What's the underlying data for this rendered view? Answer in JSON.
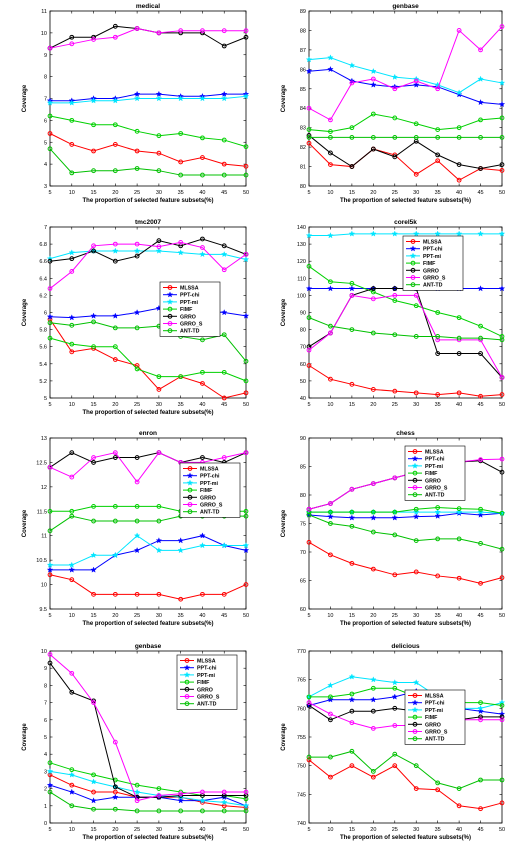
{
  "figure": {
    "series_styles": [
      {
        "name": "MLSSA",
        "color": "#ff0000",
        "marker": "circle"
      },
      {
        "name": "PPT-chi",
        "color": "#0000ff",
        "marker": "star"
      },
      {
        "name": "PPT-mi",
        "color": "#00e5ff",
        "marker": "star"
      },
      {
        "name": "FIMF",
        "color": "#00d000",
        "marker": "circle"
      },
      {
        "name": "GRRO",
        "color": "#000000",
        "marker": "circle"
      },
      {
        "name": "GRRO_S",
        "color": "#ff00ff",
        "marker": "circle"
      },
      {
        "name": "ANT-TD",
        "color": "#00c000",
        "marker": "circle"
      }
    ]
  },
  "chart_data": [
    {
      "type": "line",
      "title": "medical",
      "xlabel": "The proportion of selected feature subsets(%)",
      "ylabel": "Coverage",
      "x": [
        5,
        10,
        15,
        20,
        25,
        30,
        35,
        40,
        45,
        50
      ],
      "ylim": [
        3,
        11
      ],
      "yticks": [
        3,
        4,
        5,
        6,
        7,
        8,
        9,
        10,
        11
      ],
      "legend": "none",
      "grid": false,
      "series": [
        {
          "name": "MLSSA",
          "values": [
            5.4,
            4.9,
            4.6,
            4.9,
            4.6,
            4.5,
            4.1,
            4.3,
            4.0,
            3.9
          ]
        },
        {
          "name": "PPT-chi",
          "values": [
            6.9,
            6.9,
            7.0,
            7.0,
            7.2,
            7.2,
            7.1,
            7.1,
            7.2,
            7.2
          ]
        },
        {
          "name": "PPT-mi",
          "values": [
            6.8,
            6.8,
            6.9,
            6.9,
            7.0,
            7.0,
            7.0,
            7.0,
            7.0,
            7.1
          ]
        },
        {
          "name": "FIMF",
          "values": [
            6.2,
            6.0,
            5.8,
            5.8,
            5.5,
            5.3,
            5.4,
            5.2,
            5.1,
            4.8
          ]
        },
        {
          "name": "GRRO",
          "values": [
            9.3,
            9.8,
            9.8,
            10.3,
            10.2,
            10.0,
            10.0,
            10.0,
            9.4,
            9.8
          ]
        },
        {
          "name": "GRRO_S",
          "values": [
            9.3,
            9.5,
            9.7,
            9.8,
            10.2,
            10.0,
            10.1,
            10.1,
            10.1,
            10.1
          ]
        },
        {
          "name": "ANT-TD",
          "values": [
            4.7,
            3.6,
            3.7,
            3.7,
            3.8,
            3.7,
            3.5,
            3.5,
            3.5,
            3.5
          ]
        }
      ]
    },
    {
      "type": "line",
      "title": "genbase",
      "xlabel": "The proportion of selected feature subsets(%)",
      "ylabel": "Coverage",
      "x": [
        5,
        10,
        15,
        20,
        25,
        30,
        35,
        40,
        45,
        50
      ],
      "ylim": [
        80,
        89
      ],
      "yticks": [
        80,
        81,
        82,
        83,
        84,
        85,
        86,
        87,
        88,
        89
      ],
      "legend": "none",
      "grid": false,
      "series": [
        {
          "name": "MLSSA",
          "values": [
            82.2,
            81.1,
            81.0,
            81.9,
            81.6,
            80.6,
            81.3,
            80.3,
            80.9,
            80.8
          ]
        },
        {
          "name": "PPT-chi",
          "values": [
            85.9,
            86.0,
            85.4,
            85.2,
            85.1,
            85.2,
            85.1,
            84.7,
            84.3,
            84.2
          ]
        },
        {
          "name": "PPT-mi",
          "values": [
            86.5,
            86.6,
            86.2,
            85.9,
            85.6,
            85.5,
            85.2,
            84.8,
            85.5,
            85.3
          ]
        },
        {
          "name": "FIMF",
          "values": [
            82.9,
            82.8,
            83.0,
            83.7,
            83.5,
            83.2,
            82.9,
            83.0,
            83.4,
            83.5
          ]
        },
        {
          "name": "GRRO",
          "values": [
            82.6,
            81.7,
            81.0,
            81.9,
            81.5,
            82.3,
            81.6,
            81.1,
            80.9,
            81.1
          ]
        },
        {
          "name": "GRRO_S",
          "values": [
            84.0,
            83.4,
            85.3,
            85.5,
            85.0,
            85.4,
            85.0,
            88.0,
            87.0,
            88.2
          ]
        },
        {
          "name": "ANT-TD",
          "values": [
            82.5,
            82.5,
            82.5,
            82.5,
            82.5,
            82.5,
            82.5,
            82.5,
            82.5,
            82.5
          ]
        }
      ]
    },
    {
      "type": "line",
      "title": "tmc2007",
      "xlabel": "The proportion of selected feature subsets(%)",
      "ylabel": "Coverage",
      "x": [
        5,
        10,
        15,
        20,
        25,
        30,
        35,
        40,
        45,
        50
      ],
      "ylim": [
        5,
        7
      ],
      "yticks": [
        5,
        5.2,
        5.4,
        5.6,
        5.8,
        6,
        6.2,
        6.4,
        6.6,
        6.8,
        7
      ],
      "legend": "right",
      "grid": false,
      "series": [
        {
          "name": "MLSSA",
          "values": [
            5.92,
            5.54,
            5.58,
            5.45,
            5.38,
            5.1,
            5.25,
            5.17,
            5.0,
            5.06
          ]
        },
        {
          "name": "PPT-chi",
          "values": [
            5.95,
            5.94,
            5.96,
            5.96,
            6.0,
            6.05,
            6.0,
            6.02,
            6.0,
            5.96
          ]
        },
        {
          "name": "PPT-mi",
          "values": [
            6.63,
            6.7,
            6.72,
            6.72,
            6.72,
            6.72,
            6.7,
            6.68,
            6.68,
            6.62
          ]
        },
        {
          "name": "FIMF",
          "values": [
            5.7,
            5.63,
            5.6,
            5.6,
            5.34,
            5.25,
            5.25,
            5.3,
            5.3,
            5.2
          ]
        },
        {
          "name": "GRRO",
          "values": [
            6.6,
            6.63,
            6.72,
            6.6,
            6.66,
            6.84,
            6.78,
            6.86,
            6.78,
            6.68
          ]
        },
        {
          "name": "GRRO_S",
          "values": [
            6.28,
            6.48,
            6.78,
            6.8,
            6.8,
            6.77,
            6.82,
            6.76,
            6.5,
            6.68
          ]
        },
        {
          "name": "ANT-TD",
          "values": [
            5.88,
            5.85,
            5.89,
            5.82,
            5.82,
            5.84,
            5.72,
            5.68,
            5.74,
            5.43
          ]
        }
      ]
    },
    {
      "type": "line",
      "title": "corel5k",
      "xlabel": "",
      "ylabel": "Coverage",
      "x": [
        5,
        10,
        15,
        20,
        25,
        30,
        35,
        40,
        45,
        50
      ],
      "ylim": [
        40,
        140
      ],
      "yticks": [
        40,
        50,
        60,
        70,
        80,
        90,
        100,
        110,
        120,
        130,
        140
      ],
      "legend": "right",
      "grid": false,
      "series": [
        {
          "name": "MLSSA",
          "values": [
            59,
            51,
            48,
            45,
            44,
            43,
            42,
            43,
            41,
            42
          ]
        },
        {
          "name": "PPT-chi",
          "values": [
            104,
            104,
            104,
            104,
            104,
            104,
            104,
            104,
            104,
            104
          ]
        },
        {
          "name": "PPT-mi",
          "values": [
            135,
            135,
            136,
            136,
            136,
            136,
            136,
            136,
            136,
            136
          ]
        },
        {
          "name": "FIMF",
          "values": [
            117,
            108,
            107,
            102,
            97,
            94,
            90,
            87,
            82,
            76
          ]
        },
        {
          "name": "GRRO",
          "values": [
            70,
            78,
            100,
            104,
            104,
            104,
            66,
            66,
            66,
            52
          ]
        },
        {
          "name": "GRRO_S",
          "values": [
            68,
            78,
            100,
            98,
            100,
            100,
            74,
            74,
            74,
            52
          ]
        },
        {
          "name": "ANT-TD",
          "values": [
            87,
            82,
            80,
            78,
            77,
            76,
            76,
            75,
            75,
            74
          ]
        }
      ]
    },
    {
      "type": "line",
      "title": "enron",
      "xlabel": "The proportion of selected feature subsets(%)",
      "ylabel": "Coverage",
      "x": [
        5,
        10,
        15,
        20,
        25,
        30,
        35,
        40,
        45,
        50
      ],
      "ylim": [
        9.5,
        13
      ],
      "yticks": [
        9.5,
        10,
        10.5,
        11,
        11.5,
        12,
        12.5,
        13
      ],
      "legend": "right",
      "grid": false,
      "series": [
        {
          "name": "MLSSA",
          "values": [
            10.2,
            10.1,
            9.8,
            9.8,
            9.8,
            9.8,
            9.7,
            9.8,
            9.8,
            10.0
          ]
        },
        {
          "name": "PPT-chi",
          "values": [
            10.3,
            10.3,
            10.3,
            10.6,
            10.7,
            10.9,
            10.9,
            11.0,
            10.8,
            10.7
          ]
        },
        {
          "name": "PPT-mi",
          "values": [
            10.4,
            10.4,
            10.6,
            10.6,
            11.0,
            10.7,
            10.7,
            10.8,
            10.8,
            10.8
          ]
        },
        {
          "name": "FIMF",
          "values": [
            11.5,
            11.5,
            11.6,
            11.6,
            11.6,
            11.6,
            11.5,
            11.6,
            11.5,
            11.5
          ]
        },
        {
          "name": "GRRO",
          "values": [
            12.4,
            12.7,
            12.5,
            12.6,
            12.6,
            12.7,
            12.5,
            12.6,
            12.5,
            12.7
          ]
        },
        {
          "name": "GRRO_S",
          "values": [
            12.4,
            12.2,
            12.6,
            12.7,
            12.1,
            12.7,
            12.5,
            12.5,
            12.6,
            12.7
          ]
        },
        {
          "name": "ANT-TD",
          "values": [
            11.1,
            11.4,
            11.3,
            11.3,
            11.3,
            11.3,
            11.4,
            11.4,
            11.4,
            11.4
          ]
        }
      ]
    },
    {
      "type": "line",
      "title": "chess",
      "xlabel": "The proportion of selected feature subsets(%)",
      "ylabel": "Coverage",
      "x": [
        5,
        10,
        15,
        20,
        25,
        30,
        35,
        40,
        45,
        50
      ],
      "ylim": [
        60,
        90
      ],
      "yticks": [
        60,
        65,
        70,
        75,
        80,
        85,
        90
      ],
      "legend": "right",
      "grid": false,
      "series": [
        {
          "name": "MLSSA",
          "values": [
            71.7,
            69.5,
            68.0,
            67.0,
            66.0,
            66.5,
            65.8,
            65.4,
            64.5,
            65.5
          ]
        },
        {
          "name": "PPT-chi",
          "values": [
            76.5,
            76.2,
            76.0,
            76.0,
            76.0,
            76.2,
            76.3,
            76.8,
            76.5,
            76.8
          ]
        },
        {
          "name": "PPT-mi",
          "values": [
            77.0,
            77.0,
            77.0,
            77.0,
            77.0,
            77.0,
            77.0,
            77.0,
            77.0,
            76.8
          ]
        },
        {
          "name": "FIMF",
          "values": [
            77.0,
            77.0,
            77.0,
            77.0,
            77.0,
            77.5,
            77.8,
            77.6,
            77.5,
            76.8
          ]
        },
        {
          "name": "GRRO",
          "values": [
            77.5,
            78.5,
            81.0,
            82.0,
            83.0,
            84.0,
            85.0,
            85.8,
            86.0,
            84.0
          ]
        },
        {
          "name": "GRRO_S",
          "values": [
            77.5,
            78.5,
            81.0,
            82.0,
            83.0,
            84.0,
            85.5,
            85.8,
            86.2,
            86.3
          ]
        },
        {
          "name": "ANT-TD",
          "values": [
            76.5,
            75.0,
            74.5,
            73.5,
            73.0,
            72.0,
            72.3,
            72.3,
            71.5,
            70.5
          ]
        }
      ]
    },
    {
      "type": "line",
      "title": "genbase",
      "xlabel": "The proportion of selected feature subsets(%)",
      "ylabel": "Coverage",
      "x": [
        5,
        10,
        15,
        20,
        25,
        30,
        35,
        40,
        45,
        50
      ],
      "ylim": [
        0,
        10
      ],
      "yticks": [
        0,
        1,
        2,
        3,
        4,
        5,
        6,
        7,
        8,
        9,
        10
      ],
      "legend": "top-right",
      "grid": false,
      "series": [
        {
          "name": "MLSSA",
          "values": [
            2.8,
            2.2,
            1.8,
            1.8,
            1.5,
            1.5,
            1.5,
            1.2,
            1.0,
            0.9
          ]
        },
        {
          "name": "PPT-chi",
          "values": [
            2.2,
            1.8,
            1.3,
            1.5,
            1.5,
            1.5,
            1.3,
            1.3,
            1.5,
            1.0
          ]
        },
        {
          "name": "PPT-mi",
          "values": [
            3.0,
            2.8,
            2.4,
            2.1,
            1.8,
            1.6,
            1.5,
            1.3,
            1.2,
            1.0
          ]
        },
        {
          "name": "FIMF",
          "values": [
            3.5,
            3.1,
            2.8,
            2.5,
            2.2,
            2.0,
            1.8,
            1.6,
            1.6,
            1.4
          ]
        },
        {
          "name": "GRRO",
          "values": [
            9.3,
            7.6,
            7.1,
            2.1,
            1.5,
            1.5,
            1.6,
            1.6,
            1.6,
            1.6
          ]
        },
        {
          "name": "GRRO_S",
          "values": [
            9.8,
            8.7,
            7.0,
            4.7,
            1.3,
            1.6,
            1.7,
            1.8,
            1.8,
            1.8
          ]
        },
        {
          "name": "ANT-TD",
          "values": [
            1.8,
            1.0,
            0.8,
            0.8,
            0.7,
            0.7,
            0.7,
            0.7,
            0.7,
            0.7
          ]
        }
      ]
    },
    {
      "type": "line",
      "title": "delicious",
      "xlabel": "The proportion of selected feature subsets(%)",
      "ylabel": "Coverage",
      "x": [
        5,
        10,
        15,
        20,
        25,
        30,
        35,
        40,
        45,
        50
      ],
      "ylim": [
        740,
        770
      ],
      "yticks": [
        740,
        745,
        750,
        755,
        760,
        765,
        770
      ],
      "legend": "right",
      "grid": false,
      "series": [
        {
          "name": "MLSSA",
          "values": [
            751.0,
            748.0,
            750.0,
            748.0,
            750.0,
            746.0,
            745.8,
            743.0,
            742.5,
            743.5
          ]
        },
        {
          "name": "PPT-chi",
          "values": [
            760.5,
            761.5,
            761.5,
            761.5,
            762.0,
            763.0,
            760.5,
            760.0,
            759.5,
            759.0
          ]
        },
        {
          "name": "PPT-mi",
          "values": [
            762.0,
            764.0,
            765.5,
            765.0,
            764.5,
            764.5,
            762.0,
            760.0,
            760.0,
            761.0
          ]
        },
        {
          "name": "FIMF",
          "values": [
            762.0,
            762.0,
            762.5,
            763.5,
            763.5,
            762.0,
            761.5,
            761.0,
            761.0,
            760.5
          ]
        },
        {
          "name": "GRRO",
          "values": [
            760.5,
            758.0,
            759.5,
            759.5,
            760.0,
            759.5,
            758.0,
            758.0,
            758.5,
            758.5
          ]
        },
        {
          "name": "GRRO_S",
          "values": [
            761.0,
            759.0,
            757.5,
            756.5,
            757.0,
            757.0,
            758.5,
            758.0,
            758.0,
            758.0
          ]
        },
        {
          "name": "ANT-TD",
          "values": [
            751.5,
            751.5,
            752.5,
            749.0,
            752.0,
            750.0,
            747.0,
            746.0,
            747.5,
            747.5
          ]
        }
      ]
    }
  ]
}
